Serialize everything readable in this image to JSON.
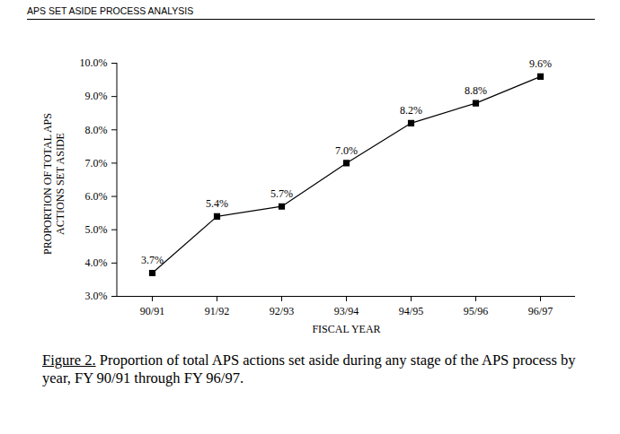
{
  "chart_data": {
    "type": "line",
    "header": "APS SET ASIDE PROCESS ANALYSIS",
    "figure_label": "Figure 2.",
    "title": "Proportion of total APS actions set aside during any stage of the APS process by year, FY 90/91 through FY 96/97.",
    "x_label": "FISCAL YEAR",
    "y_label": [
      "PROPORTION OF TOTAL APS",
      "ACTIONS SET ASIDE"
    ],
    "categories": [
      "90/91",
      "91/92",
      "92/93",
      "93/94",
      "94/95",
      "95/96",
      "96/97"
    ],
    "values": [
      3.7,
      5.4,
      5.7,
      7.0,
      8.2,
      8.8,
      9.6
    ],
    "value_labels": [
      "3.7%",
      "5.4%",
      "5.7%",
      "7.0%",
      "8.2%",
      "8.8%",
      "9.6%"
    ],
    "data_labels": true,
    "color": "#000000",
    "marker": "square",
    "line_style": "solid",
    "grid": false,
    "ylim": [
      3,
      10
    ],
    "yticks": [
      {
        "value": 3,
        "label": "3.0%"
      },
      {
        "value": 4,
        "label": "4.0%"
      },
      {
        "value": 5,
        "label": "5.0%"
      },
      {
        "value": 6,
        "label": "6.0%"
      },
      {
        "value": 7,
        "label": "7.0%"
      },
      {
        "value": 8,
        "label": "8.0%"
      },
      {
        "value": 9,
        "label": "9.0%"
      },
      {
        "value": 10,
        "label": "10.0%"
      }
    ]
  }
}
